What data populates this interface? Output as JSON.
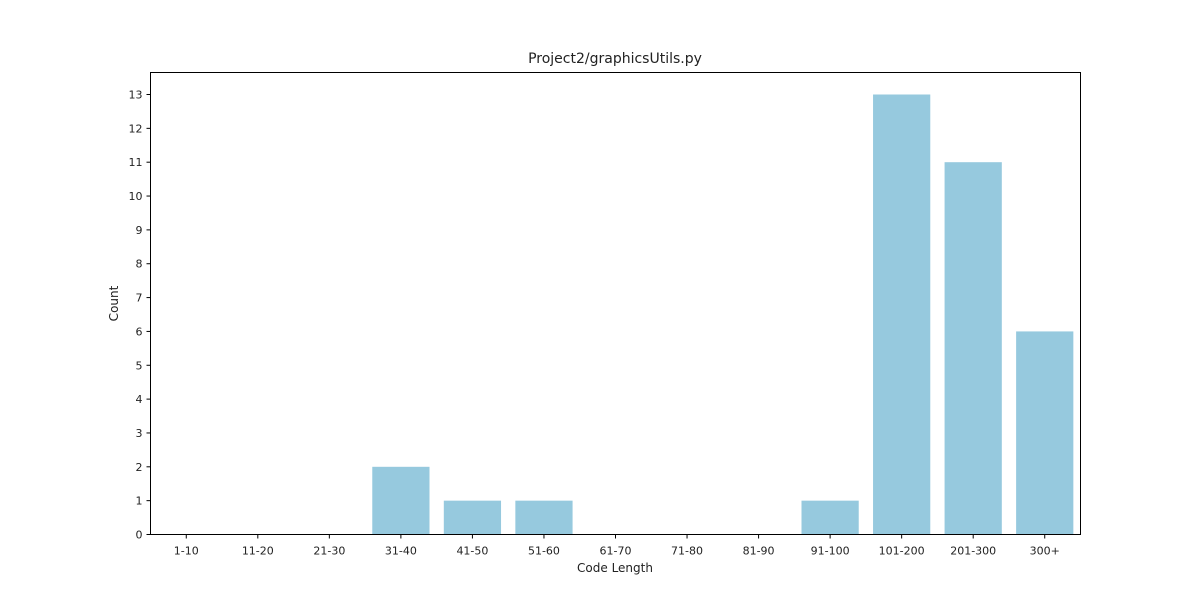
{
  "chart_data": {
    "type": "bar",
    "title": "Project2/graphicsUtils.py",
    "xlabel": "Code Length",
    "ylabel": "Count",
    "categories": [
      "1-10",
      "11-20",
      "21-30",
      "31-40",
      "41-50",
      "51-60",
      "61-70",
      "71-80",
      "81-90",
      "91-100",
      "101-200",
      "201-300",
      "300+"
    ],
    "values": [
      0,
      0,
      0,
      2,
      1,
      1,
      0,
      0,
      0,
      1,
      13,
      11,
      6
    ],
    "yticks": [
      0,
      1,
      2,
      3,
      4,
      5,
      6,
      7,
      8,
      9,
      10,
      11,
      12,
      13
    ],
    "ylim": [
      0,
      13.65
    ],
    "grid": false,
    "bar_color": "#96c9de"
  }
}
